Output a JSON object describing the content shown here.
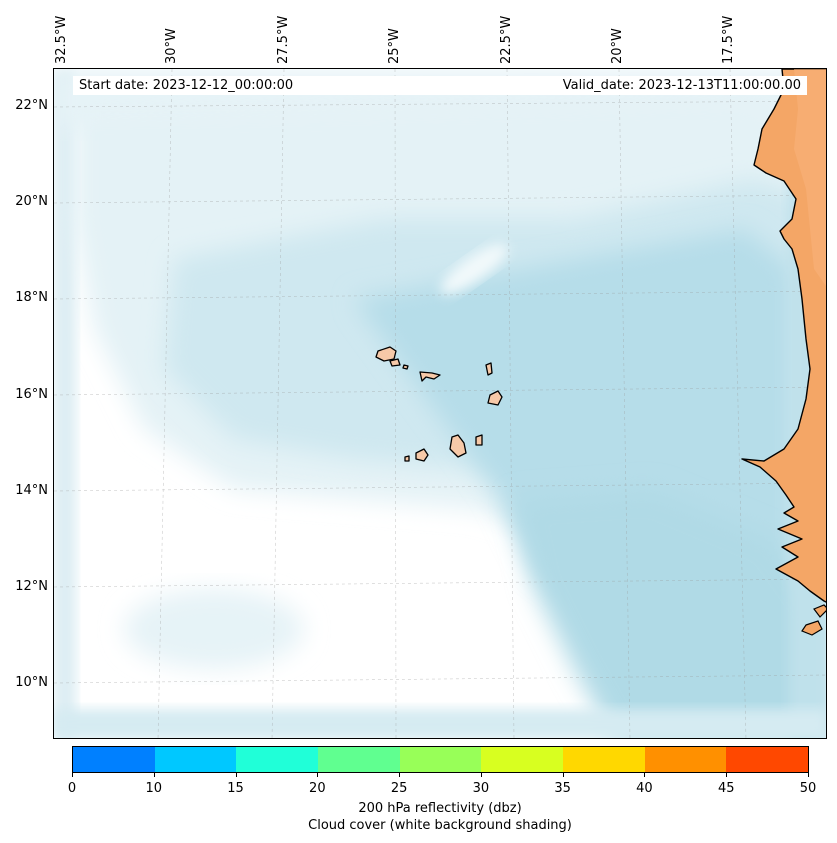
{
  "map": {
    "start_date": "Start date: 2023-12-12_00:00:00",
    "valid_date": "Valid_date: 2023-12-13T11:00:00.00",
    "lon_labels": [
      "32.5°W",
      "30°W",
      "27.5°W",
      "25°W",
      "22.5°W",
      "20°W",
      "17.5°W"
    ],
    "lat_labels": [
      "22°N",
      "20°N",
      "18°N",
      "16°N",
      "14°N",
      "12°N",
      "10°N"
    ],
    "colors": {
      "cloud_light": "#e3f2f7",
      "cloud_mid": "#c7e5ee",
      "cloud_dark": "#aad8e5",
      "land": "#f4a666",
      "island": "#f7c9a8",
      "coastline": "#000000"
    }
  },
  "colorbar": {
    "label_line1": "200 hPa reflectivity (dbz)",
    "label_line2": "Cloud cover (white background shading)",
    "ticks": [
      "0",
      "10",
      "15",
      "20",
      "25",
      "30",
      "35",
      "40",
      "45",
      "50"
    ],
    "colors": [
      "#0080ff",
      "#00c8ff",
      "#20ffd8",
      "#60ff90",
      "#98ff58",
      "#d8ff20",
      "#ffd800",
      "#ff9000",
      "#ff4800"
    ]
  }
}
